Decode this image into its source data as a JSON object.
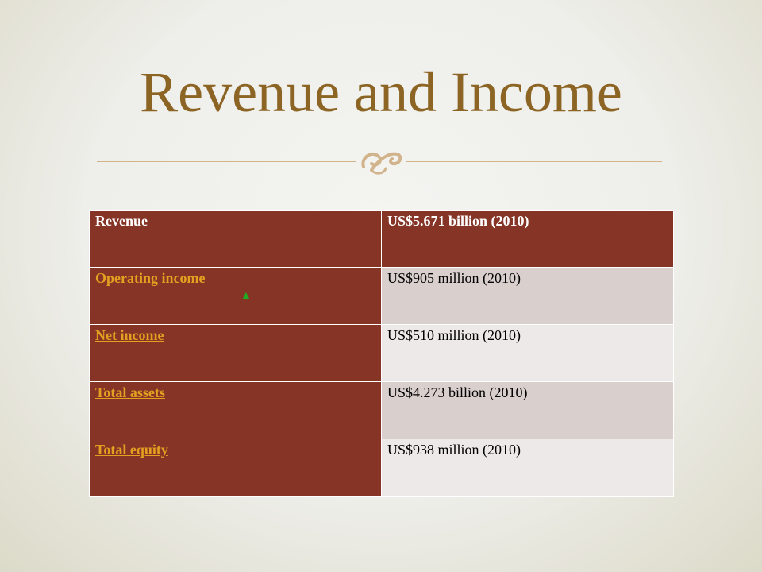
{
  "slide": {
    "title": "Revenue and Income",
    "ornament_icon": "scroll-flourish-icon",
    "colors": {
      "title": "#8c6424",
      "header_fill": "#853426",
      "link": "#e4a020",
      "shaded_row": "#d9cfcd",
      "plain_row": "#ece9e8",
      "up_arrow": "#22aa22"
    }
  },
  "table": {
    "header": {
      "label": "Revenue",
      "value": "US$5.671 billion (2010)"
    },
    "rows": [
      {
        "label": "Operating income",
        "value": "US$905 million (2010)",
        "trend_icon": "up-triangle-icon",
        "trend_glyph": "▲"
      },
      {
        "label": "Net income",
        "value": "US$510 million (2010)"
      },
      {
        "label": "Total assets",
        "value": "US$4.273 billion (2010)"
      },
      {
        "label": "Total equity",
        "value": "US$938 million (2010)"
      }
    ]
  }
}
